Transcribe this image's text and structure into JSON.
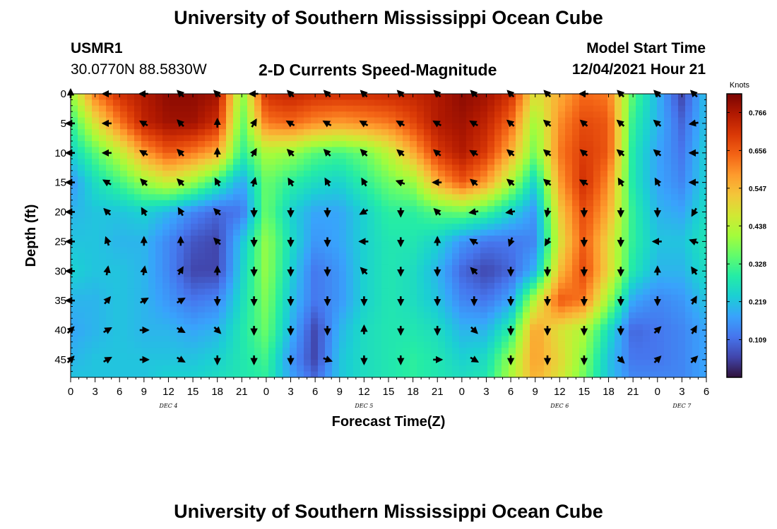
{
  "header": {
    "title": "University of Southern Mississippi Ocean Cube",
    "station_id": "USMR1",
    "coordinates": "30.0770N  88.5830W",
    "subtitle": "2-D Currents Speed-Magnitude",
    "start_label": "Model Start Time",
    "start_value": "12/04/2021 Hour 21",
    "repeat_title": "University of Southern Mississippi Ocean Cube"
  },
  "chart_data": {
    "type": "heatmap",
    "title": "2-D Currents Speed-Magnitude",
    "xlabel": "Forecast Time(Z)",
    "ylabel": "Depth (ft)",
    "x_tick_labels": [
      "0",
      "3",
      "6",
      "9",
      "12",
      "15",
      "18",
      "21",
      "0",
      "3",
      "6",
      "9",
      "12",
      "15",
      "18",
      "21",
      "0",
      "3",
      "6",
      "9",
      "12",
      "15",
      "18",
      "21",
      "0",
      "3",
      "6"
    ],
    "x_hours_range": [
      0,
      78
    ],
    "day_labels": [
      {
        "label": "DEC 4",
        "hour": 12
      },
      {
        "label": "DEC 5",
        "hour": 36
      },
      {
        "label": "DEC 6",
        "hour": 60
      },
      {
        "label": "DEC 7",
        "hour": 75
      }
    ],
    "y_tick_labels": [
      "0",
      "5",
      "10",
      "15",
      "20",
      "25",
      "30",
      "35",
      "40",
      "45"
    ],
    "ylim": [
      0,
      48
    ],
    "colorbar": {
      "unit": "Knots",
      "min": 0,
      "max": 0.82,
      "ticks": [
        "0.766",
        "0.656",
        "0.547",
        "0.438",
        "0.328",
        "0.219",
        "0.109"
      ],
      "colors": [
        "#30123b",
        "#4145ab",
        "#4675ed",
        "#39a2fc",
        "#1bcfd4",
        "#24eca6",
        "#61fc6c",
        "#a4fc3b",
        "#d1e834",
        "#f3c63a",
        "#fe9b2d",
        "#f36315",
        "#d93806",
        "#b11901",
        "#7a0403"
      ]
    },
    "speed_field": {
      "rows_depth_ft": [
        0,
        5,
        10,
        15,
        20,
        25,
        30,
        35,
        40,
        45,
        48
      ],
      "cols_hour": [
        0,
        3,
        6,
        9,
        12,
        15,
        18,
        21,
        24,
        27,
        30,
        33,
        36,
        39,
        42,
        45,
        48,
        51,
        54,
        57,
        60,
        63,
        66,
        69,
        72,
        75,
        78
      ],
      "values": [
        [
          0.4,
          0.62,
          0.72,
          0.76,
          0.8,
          0.8,
          0.78,
          0.38,
          0.72,
          0.74,
          0.72,
          0.72,
          0.72,
          0.73,
          0.74,
          0.76,
          0.8,
          0.78,
          0.72,
          0.48,
          0.56,
          0.64,
          0.62,
          0.34,
          0.2,
          0.06,
          0.22
        ],
        [
          0.3,
          0.48,
          0.62,
          0.74,
          0.78,
          0.78,
          0.72,
          0.34,
          0.62,
          0.64,
          0.6,
          0.58,
          0.6,
          0.62,
          0.68,
          0.76,
          0.78,
          0.74,
          0.64,
          0.4,
          0.6,
          0.68,
          0.66,
          0.3,
          0.2,
          0.1,
          0.22
        ],
        [
          0.24,
          0.34,
          0.44,
          0.58,
          0.66,
          0.62,
          0.56,
          0.3,
          0.42,
          0.4,
          0.34,
          0.32,
          0.36,
          0.44,
          0.56,
          0.7,
          0.76,
          0.7,
          0.56,
          0.36,
          0.62,
          0.7,
          0.66,
          0.28,
          0.18,
          0.12,
          0.24
        ],
        [
          0.16,
          0.26,
          0.32,
          0.4,
          0.46,
          0.4,
          0.3,
          0.18,
          0.36,
          0.3,
          0.26,
          0.24,
          0.3,
          0.36,
          0.4,
          0.56,
          0.66,
          0.58,
          0.42,
          0.24,
          0.58,
          0.72,
          0.6,
          0.28,
          0.18,
          0.14,
          0.24
        ],
        [
          0.2,
          0.22,
          0.22,
          0.24,
          0.2,
          0.14,
          0.1,
          0.12,
          0.36,
          0.24,
          0.18,
          0.18,
          0.24,
          0.3,
          0.3,
          0.34,
          0.36,
          0.32,
          0.24,
          0.16,
          0.52,
          0.68,
          0.56,
          0.3,
          0.2,
          0.18,
          0.26
        ],
        [
          0.22,
          0.22,
          0.2,
          0.2,
          0.14,
          0.08,
          0.06,
          0.22,
          0.4,
          0.26,
          0.16,
          0.18,
          0.24,
          0.28,
          0.28,
          0.24,
          0.16,
          0.12,
          0.12,
          0.14,
          0.48,
          0.66,
          0.5,
          0.3,
          0.22,
          0.22,
          0.28
        ],
        [
          0.24,
          0.22,
          0.22,
          0.2,
          0.14,
          0.06,
          0.06,
          0.24,
          0.4,
          0.24,
          0.12,
          0.16,
          0.24,
          0.28,
          0.26,
          0.2,
          0.1,
          0.06,
          0.1,
          0.2,
          0.54,
          0.68,
          0.5,
          0.28,
          0.2,
          0.2,
          0.26
        ],
        [
          0.2,
          0.2,
          0.22,
          0.2,
          0.16,
          0.12,
          0.14,
          0.26,
          0.38,
          0.22,
          0.12,
          0.16,
          0.24,
          0.28,
          0.26,
          0.22,
          0.14,
          0.12,
          0.18,
          0.44,
          0.66,
          0.62,
          0.4,
          0.18,
          0.14,
          0.16,
          0.22
        ],
        [
          0.18,
          0.2,
          0.22,
          0.2,
          0.2,
          0.18,
          0.2,
          0.28,
          0.36,
          0.2,
          0.06,
          0.2,
          0.26,
          0.28,
          0.28,
          0.26,
          0.2,
          0.2,
          0.3,
          0.58,
          0.48,
          0.42,
          0.26,
          0.1,
          0.12,
          0.14,
          0.18
        ],
        [
          0.2,
          0.22,
          0.22,
          0.22,
          0.22,
          0.22,
          0.24,
          0.28,
          0.32,
          0.16,
          0.06,
          0.22,
          0.26,
          0.28,
          0.3,
          0.28,
          0.24,
          0.26,
          0.4,
          0.58,
          0.5,
          0.38,
          0.22,
          0.12,
          0.12,
          0.14,
          0.18
        ],
        [
          0.22,
          0.22,
          0.22,
          0.22,
          0.24,
          0.24,
          0.26,
          0.28,
          0.3,
          0.18,
          0.1,
          0.22,
          0.26,
          0.28,
          0.3,
          0.28,
          0.26,
          0.28,
          0.42,
          0.56,
          0.48,
          0.36,
          0.22,
          0.14,
          0.14,
          0.14,
          0.18
        ]
      ]
    },
    "vectors": {
      "rows_depth_ft": [
        0,
        5,
        10,
        15,
        20,
        25,
        30,
        35,
        40,
        45
      ],
      "cols_hour": [
        0,
        4.5,
        9,
        13.5,
        18,
        22.5,
        27,
        31.5,
        36,
        40.5,
        45,
        49.5,
        54,
        58.5,
        63,
        67.5,
        72,
        76.5
      ],
      "angles_deg": [
        [
          90,
          180,
          180,
          135,
          135,
          180,
          135,
          135,
          135,
          135,
          135,
          135,
          135,
          135,
          180,
          135,
          135,
          135
        ],
        [
          180,
          180,
          150,
          135,
          90,
          60,
          150,
          150,
          150,
          150,
          150,
          150,
          140,
          140,
          140,
          140,
          140,
          190
        ],
        [
          180,
          180,
          150,
          135,
          90,
          60,
          135,
          135,
          135,
          140,
          140,
          150,
          140,
          140,
          140,
          140,
          140,
          180
        ],
        [
          180,
          150,
          135,
          135,
          120,
          75,
          120,
          120,
          120,
          160,
          180,
          140,
          140,
          140,
          150,
          120,
          120,
          180
        ],
        [
          180,
          135,
          120,
          120,
          135,
          270,
          270,
          270,
          210,
          270,
          135,
          190,
          190,
          260,
          270,
          270,
          270,
          240
        ],
        [
          180,
          110,
          90,
          90,
          135,
          270,
          270,
          270,
          180,
          270,
          90,
          150,
          250,
          240,
          270,
          270,
          180,
          160
        ],
        [
          180,
          80,
          80,
          60,
          90,
          270,
          270,
          270,
          135,
          270,
          270,
          135,
          270,
          270,
          270,
          270,
          90,
          125
        ],
        [
          180,
          50,
          30,
          30,
          270,
          270,
          270,
          270,
          270,
          270,
          270,
          270,
          270,
          270,
          270,
          270,
          270,
          60
        ],
        [
          45,
          30,
          0,
          330,
          315,
          270,
          270,
          270,
          90,
          270,
          270,
          315,
          270,
          270,
          270,
          270,
          45,
          60
        ],
        [
          45,
          30,
          0,
          330,
          270,
          270,
          270,
          340,
          270,
          270,
          0,
          330,
          270,
          270,
          270,
          315,
          45,
          45
        ]
      ]
    }
  }
}
